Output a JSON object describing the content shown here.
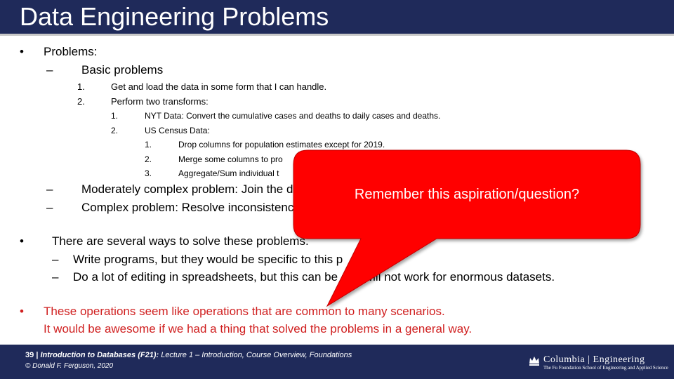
{
  "slide": {
    "title": "Data Engineering Problems",
    "bullet_marker": "•",
    "dash_marker": "–",
    "problems": {
      "label": "Problems:",
      "basic": {
        "label": "Basic problems",
        "items": [
          {
            "num": "1.",
            "text": "Get and load the data in some form that I can handle."
          },
          {
            "num": "2.",
            "text": "Perform  two transforms:"
          }
        ],
        "transforms": [
          {
            "num": "1.",
            "text": "NYT Data:  Convert the cumulative cases and deaths to daily cases and deaths."
          },
          {
            "num": "2.",
            "text": "US Census Data:"
          }
        ],
        "census_steps": [
          {
            "num": "1.",
            "text": "Drop columns for  population estimates except for 2019."
          },
          {
            "num": "2.",
            "text": "Merge some columns to pro"
          },
          {
            "num": "3.",
            "text": "Aggregate/Sum individual t"
          }
        ]
      },
      "moderate": "Moderately complex problem: Join the d",
      "complex": "Complex problem: Resolve inconsistenc"
    },
    "ways": {
      "label": "There are several ways to solve these problems.",
      "items": [
        "Write programs, but they would be specific to this p",
        "Do a lot of editing in spreadsheets, but this can be   and will not work for enormous datasets."
      ]
    },
    "aspiration": {
      "line1": "These operations seem like operations that are common to many scenarios.",
      "line2": "It would be awesome if we had a thing that solved the problems in a general way."
    },
    "callout": {
      "text": "Remember this aspiration/question?",
      "color": "#ff0000"
    }
  },
  "footer": {
    "page_number": "39",
    "separator": "|",
    "course": "Introduction to Databases (F21):",
    "lecture": " Lecture 1 – Introduction, Course Overview, Foundations",
    "copyright": "© Donald F. Ferguson, 2020"
  },
  "logo": {
    "icon": "crown-icon",
    "name": "Columbia | Engineering",
    "subtitle": "The Fu Foundation School of Engineering and Applied Science"
  },
  "colors": {
    "header_bg": "#1f2a5a",
    "aspiration_text": "#d01f1f",
    "callout_fill": "#ff0000"
  }
}
